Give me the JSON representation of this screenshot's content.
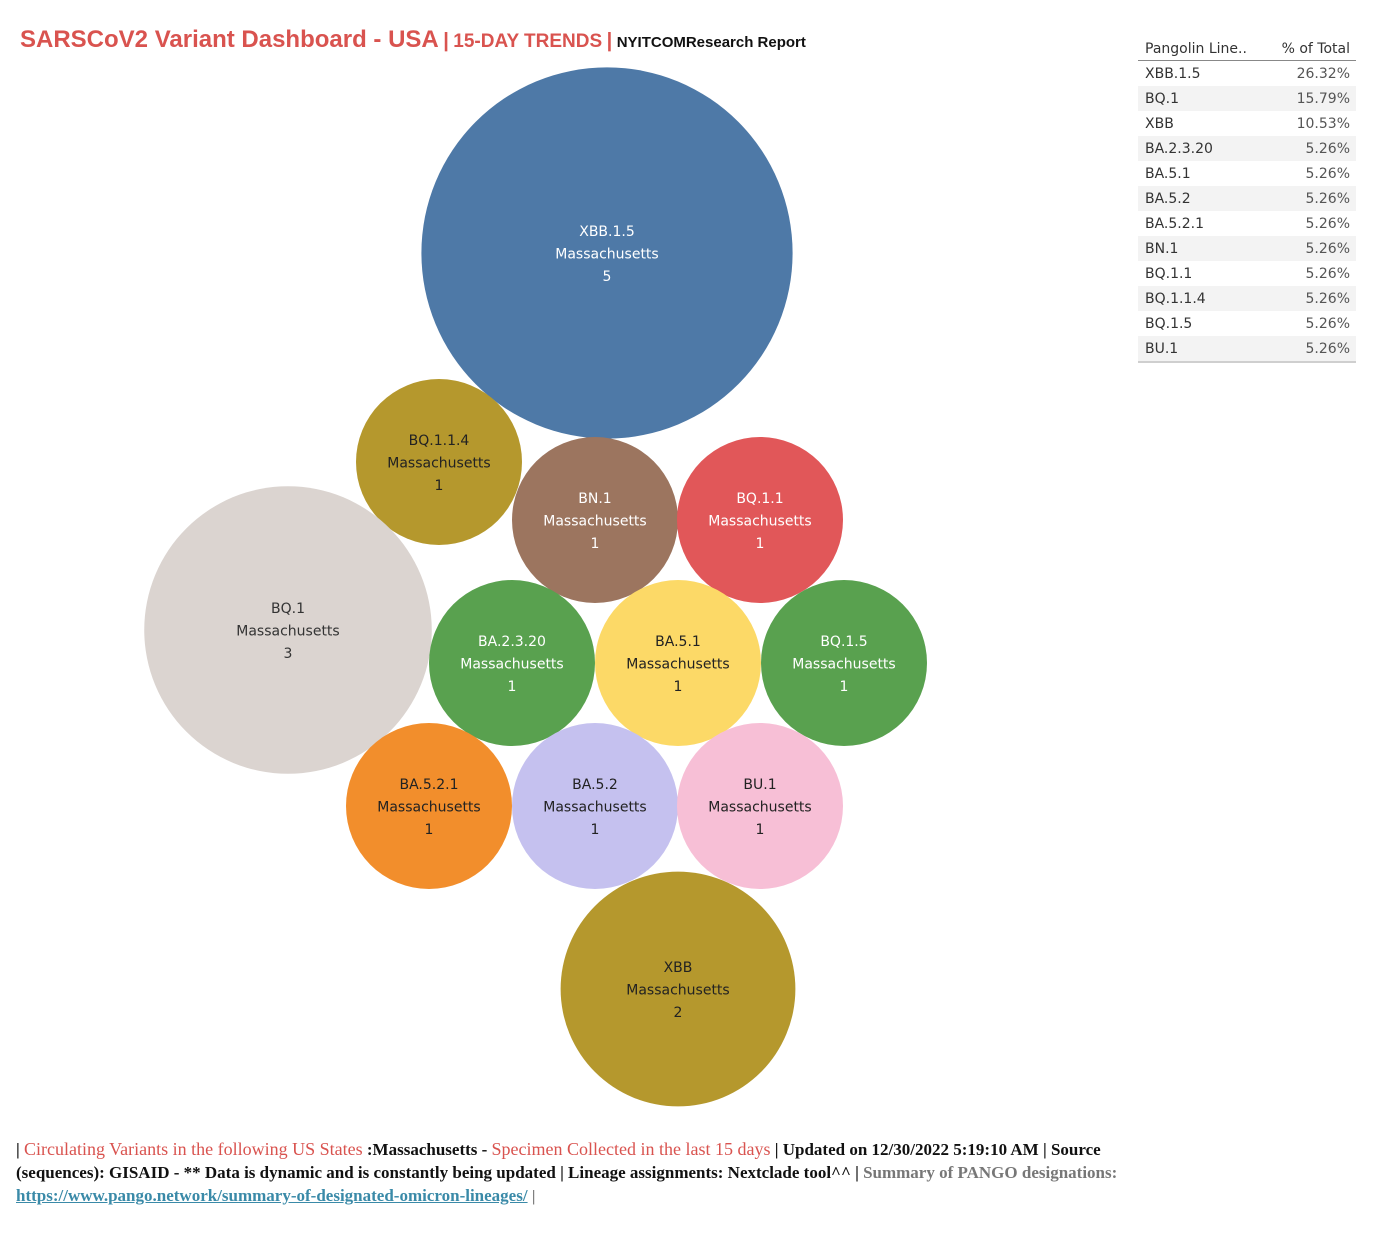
{
  "title": {
    "main": "SARSCoV2 Variant Dashboard - USA",
    "separator": "|",
    "subtitle": "15-DAY TRENDS",
    "report": "NYITCOMResearch Report"
  },
  "chart_data": {
    "type": "bubble",
    "region": "Massachusetts",
    "bubbles": [
      {
        "lineage": "XBB.1.5",
        "state": "Massachusetts",
        "count": 5,
        "color": "#4e79a7",
        "text_color": "#ffffff"
      },
      {
        "lineage": "BQ.1.1.4",
        "state": "Massachusetts",
        "count": 1,
        "color": "#b5982d",
        "text_color": "#222222"
      },
      {
        "lineage": "BN.1",
        "state": "Massachusetts",
        "count": 1,
        "color": "#9c755f",
        "text_color": "#ffffff"
      },
      {
        "lineage": "BQ.1.1",
        "state": "Massachusetts",
        "count": 1,
        "color": "#e15759",
        "text_color": "#ffffff"
      },
      {
        "lineage": "BQ.1",
        "state": "Massachusetts",
        "count": 3,
        "color": "#dbd4d0",
        "text_color": "#333333"
      },
      {
        "lineage": "BA.2.3.20",
        "state": "Massachusetts",
        "count": 1,
        "color": "#59a14f",
        "text_color": "#ffffff"
      },
      {
        "lineage": "BA.5.1",
        "state": "Massachusetts",
        "count": 1,
        "color": "#fcd967",
        "text_color": "#222222"
      },
      {
        "lineage": "BQ.1.5",
        "state": "Massachusetts",
        "count": 1,
        "color": "#59a14f",
        "text_color": "#ffffff"
      },
      {
        "lineage": "BA.5.2.1",
        "state": "Massachusetts",
        "count": 1,
        "color": "#f28e2c",
        "text_color": "#222222"
      },
      {
        "lineage": "BA.5.2",
        "state": "Massachusetts",
        "count": 1,
        "color": "#c5c1ef",
        "text_color": "#222222"
      },
      {
        "lineage": "BU.1",
        "state": "Massachusetts",
        "count": 1,
        "color": "#f7bfd6",
        "text_color": "#222222"
      },
      {
        "lineage": "XBB",
        "state": "Massachusetts",
        "count": 2,
        "color": "#b5982d",
        "text_color": "#222222"
      }
    ],
    "table": {
      "columns": [
        "Pangolin Line..",
        "% of Total"
      ],
      "rows": [
        [
          "XBB.1.5",
          "26.32%"
        ],
        [
          "BQ.1",
          "15.79%"
        ],
        [
          "XBB",
          "10.53%"
        ],
        [
          "BA.2.3.20",
          "5.26%"
        ],
        [
          "BA.5.1",
          "5.26%"
        ],
        [
          "BA.5.2",
          "5.26%"
        ],
        [
          "BA.5.2.1",
          "5.26%"
        ],
        [
          "BN.1",
          "5.26%"
        ],
        [
          "BQ.1.1",
          "5.26%"
        ],
        [
          "BQ.1.1.4",
          "5.26%"
        ],
        [
          "BQ.1.5",
          "5.26%"
        ],
        [
          "BU.1",
          "5.26%"
        ]
      ]
    }
  },
  "footer": {
    "pipe_start": "|",
    "circulating": "Circulating Variants in the following US States",
    "state_label": ":Massachusetts -",
    "specimen": "Specimen Collected in the last 15 days",
    "updated": "| Updated on 12/30/2022 5:19:10 AM | Source (sequences): GISAID - ** Data is dynamic and is constantly being updated | Lineage assignments: Nextclade tool^^ |",
    "summary": "Summary of PANGO designations:",
    "link": "https://www.pango.network/summary-of-designated-omicron-lineages/",
    "pipe_end": "|"
  }
}
